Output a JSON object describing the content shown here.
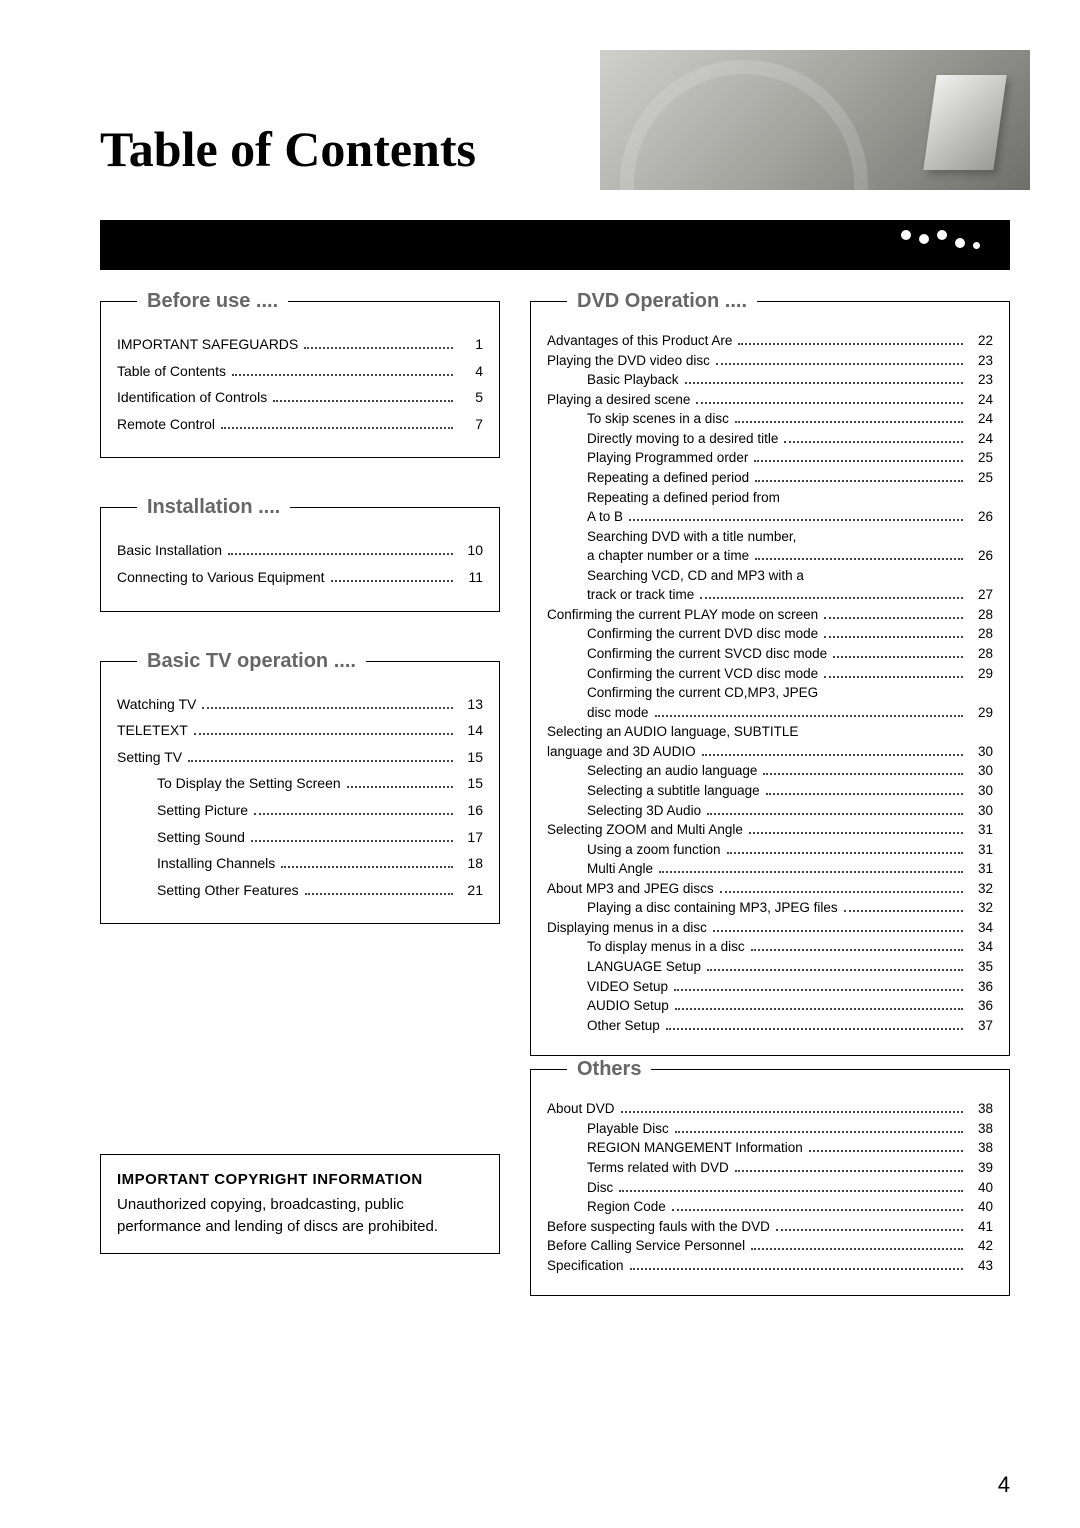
{
  "page_number": "4",
  "title": "Table of Contents",
  "copyright": {
    "heading": "IMPORTANT COPYRIGHT INFORMATION",
    "body": "Unauthorized copying, broadcasting, public performance and lending of discs are prohibited."
  },
  "sections": {
    "before_use": {
      "legend": "Before use ....",
      "items": [
        {
          "label": "IMPORTANT SAFEGUARDS",
          "page": "1",
          "indent": 0
        },
        {
          "label": "Table of Contents",
          "page": "4",
          "indent": 0
        },
        {
          "label": "Identification of Controls",
          "page": "5",
          "indent": 0
        },
        {
          "label": "Remote Control",
          "page": "7",
          "indent": 0
        }
      ]
    },
    "installation": {
      "legend": "Installation ....",
      "items": [
        {
          "label": "Basic Installation",
          "page": "10",
          "indent": 0
        },
        {
          "label": "Connecting to Various Equipment",
          "page": "11",
          "indent": 0
        }
      ]
    },
    "basic_tv": {
      "legend": "Basic TV operation ....",
      "items": [
        {
          "label": "Watching TV",
          "page": "13",
          "indent": 0
        },
        {
          "label": "TELETEXT",
          "page": "14",
          "indent": 0
        },
        {
          "label": "Setting TV",
          "page": "15",
          "indent": 0
        },
        {
          "label": "To Display the Setting Screen",
          "page": "15",
          "indent": 1
        },
        {
          "label": "Setting Picture",
          "page": "16",
          "indent": 1
        },
        {
          "label": "Setting Sound",
          "page": "17",
          "indent": 1
        },
        {
          "label": "Installing Channels",
          "page": "18",
          "indent": 1
        },
        {
          "label": "Setting Other Features",
          "page": "21",
          "indent": 1
        }
      ]
    },
    "dvd_operation": {
      "legend": "DVD Operation ....",
      "items": [
        {
          "label": "Advantages of this Product Are",
          "page": "22",
          "indent": 0
        },
        {
          "label": "Playing the DVD video disc",
          "page": "23",
          "indent": 0
        },
        {
          "label": "Basic Playback",
          "page": "23",
          "indent": 1
        },
        {
          "label": "Playing a desired scene",
          "page": "24",
          "indent": 0
        },
        {
          "label": "To skip scenes in a disc",
          "page": "24",
          "indent": 1
        },
        {
          "label": "Directly moving to a desired title",
          "page": "24",
          "indent": 1
        },
        {
          "label": "Playing Programmed order",
          "page": "25",
          "indent": 1
        },
        {
          "label": "Repeating a defined period",
          "page": "25",
          "indent": 1
        },
        {
          "label": "Repeating a defined period from",
          "page": "",
          "indent": 1,
          "nopage": true
        },
        {
          "label": "A to B",
          "page": "26",
          "indent": 1
        },
        {
          "label": "Searching DVD with a title number,",
          "page": "",
          "indent": 1,
          "nopage": true
        },
        {
          "label": "a chapter number or a time",
          "page": "26",
          "indent": 1
        },
        {
          "label": "Searching VCD, CD and MP3 with a",
          "page": "",
          "indent": 1,
          "nopage": true
        },
        {
          "label": "track or track time",
          "page": "27",
          "indent": 1
        },
        {
          "label": "Confirming the current PLAY mode on screen",
          "page": "28",
          "indent": 0
        },
        {
          "label": "Confirming the current DVD disc mode",
          "page": "28",
          "indent": 1
        },
        {
          "label": "Confirming the current SVCD disc mode",
          "page": "28",
          "indent": 1
        },
        {
          "label": "Confirming the current VCD disc mode",
          "page": "29",
          "indent": 1
        },
        {
          "label": "Confirming the current CD,MP3, JPEG",
          "page": "",
          "indent": 1,
          "nopage": true
        },
        {
          "label": "disc mode",
          "page": "29",
          "indent": 1
        },
        {
          "label": "Selecting an AUDIO language, SUBTITLE",
          "page": "",
          "indent": 0,
          "nopage": true
        },
        {
          "label": "language and 3D AUDIO",
          "page": "30",
          "indent": 0
        },
        {
          "label": "Selecting an audio language",
          "page": "30",
          "indent": 1
        },
        {
          "label": "Selecting a subtitle language",
          "page": "30",
          "indent": 1
        },
        {
          "label": "Selecting 3D Audio",
          "page": "30",
          "indent": 1
        },
        {
          "label": "Selecting ZOOM and Multi Angle",
          "page": "31",
          "indent": 0
        },
        {
          "label": "Using a zoom function",
          "page": "31",
          "indent": 1
        },
        {
          "label": "Multi  Angle",
          "page": "31",
          "indent": 1
        },
        {
          "label": "About MP3 and JPEG discs",
          "page": "32",
          "indent": 0
        },
        {
          "label": "Playing a disc containing MP3, JPEG files",
          "page": "32",
          "indent": 1
        },
        {
          "label": "Displaying menus in a disc",
          "page": "34",
          "indent": 0
        },
        {
          "label": "To display menus in a disc",
          "page": "34",
          "indent": 1
        },
        {
          "label": "LANGUAGE Setup",
          "page": "35",
          "indent": 1
        },
        {
          "label": "VIDEO Setup",
          "page": "36",
          "indent": 1
        },
        {
          "label": "AUDIO Setup",
          "page": "36",
          "indent": 1
        },
        {
          "label": "Other Setup",
          "page": "37",
          "indent": 1
        }
      ]
    },
    "others": {
      "legend": "Others",
      "items": [
        {
          "label": "About DVD",
          "page": "38",
          "indent": 0
        },
        {
          "label": "Playable Disc",
          "page": "38",
          "indent": 1
        },
        {
          "label": "REGION MANGEMENT Information",
          "page": "38",
          "indent": 1
        },
        {
          "label": "Terms related with DVD",
          "page": "39",
          "indent": 1
        },
        {
          "label": "Disc",
          "page": "40",
          "indent": 1
        },
        {
          "label": "Region Code",
          "page": "40",
          "indent": 1
        },
        {
          "label": "Before suspecting fauls with the DVD",
          "page": "41",
          "indent": 0
        },
        {
          "label": "Before Calling Service Personnel",
          "page": "42",
          "indent": 0
        },
        {
          "label": "Specification",
          "page": "43",
          "indent": 0
        }
      ]
    }
  }
}
